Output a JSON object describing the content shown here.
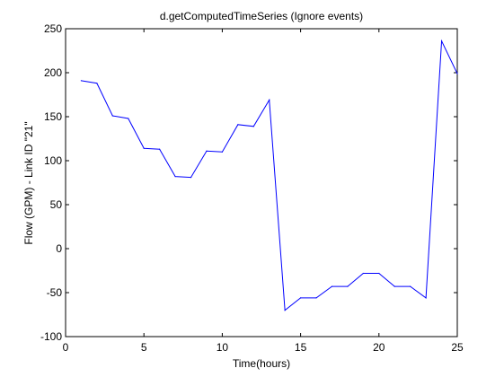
{
  "chart_data": {
    "type": "line",
    "title": "d.getComputedTimeSeries (Ignore events)",
    "xlabel": "Time(hours)",
    "ylabel": "Flow (GPM) - Link ID \"21\"",
    "xlim": [
      0,
      25
    ],
    "ylim": [
      -100,
      250
    ],
    "xticks": [
      0,
      5,
      10,
      15,
      20,
      25
    ],
    "yticks": [
      -100,
      -50,
      0,
      50,
      100,
      150,
      200,
      250
    ],
    "grid": false,
    "legend": "none",
    "series": [
      {
        "color": "#0000ff",
        "x": [
          1,
          2,
          3,
          4,
          5,
          6,
          7,
          8,
          9,
          10,
          11,
          12,
          13,
          14,
          15,
          16,
          17,
          18,
          19,
          20,
          21,
          22,
          23,
          24,
          25
        ],
        "y": [
          191,
          188,
          151,
          148,
          114,
          113,
          82,
          81,
          111,
          110,
          141,
          139,
          169,
          -70,
          -56,
          -56,
          -43,
          -43,
          -28,
          -28,
          -43,
          -43,
          -56,
          236,
          199
        ]
      }
    ]
  }
}
